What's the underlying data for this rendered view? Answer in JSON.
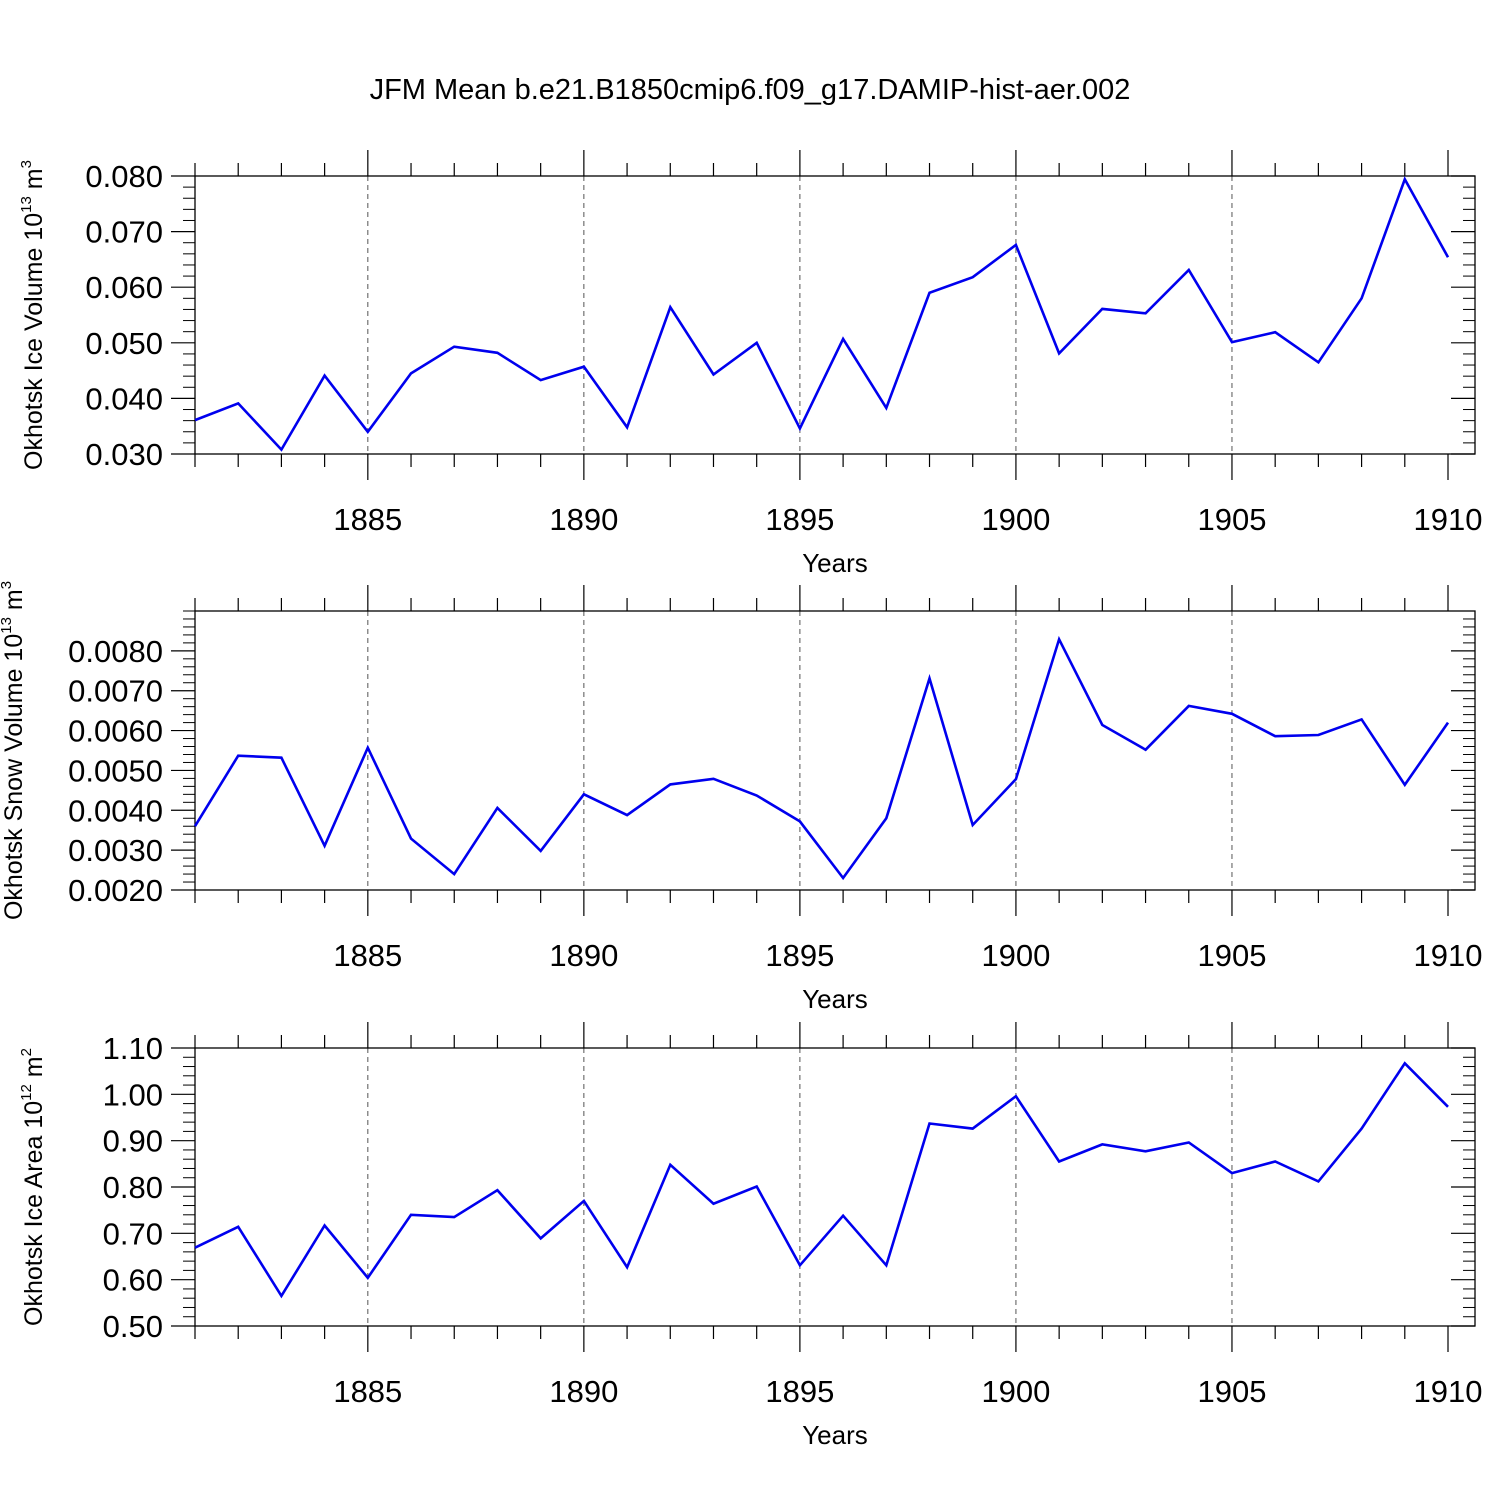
{
  "title": "JFM Mean b.e21.B1850cmip6.f09_g17.DAMIP-hist-aer.002",
  "colors": {
    "line": "#0000ee",
    "axis": "#000000",
    "grid": "#555555"
  },
  "chart_data": [
    {
      "type": "line",
      "ylabel": {
        "main": "Okhotsk Ice Volume 10",
        "exponent": "13",
        "unit": " m",
        "unit_exponent": "3"
      },
      "xlabel": "Years",
      "xlim": [
        1881,
        1910
      ],
      "ylim": [
        0.03,
        0.08
      ],
      "yticks": [
        0.03,
        0.04,
        0.05,
        0.06,
        0.07,
        0.08
      ],
      "ytick_labels": [
        "0.030",
        "0.040",
        "0.050",
        "0.060",
        "0.070",
        "0.080"
      ],
      "xticks": [
        1885,
        1890,
        1895,
        1900,
        1905,
        1910
      ],
      "xtick_labels": [
        "1885",
        "1890",
        "1895",
        "1900",
        "1905",
        "1910"
      ],
      "x": [
        1881,
        1882,
        1883,
        1884,
        1885,
        1886,
        1887,
        1888,
        1889,
        1890,
        1891,
        1892,
        1893,
        1894,
        1895,
        1896,
        1897,
        1898,
        1899,
        1900,
        1901,
        1902,
        1903,
        1904,
        1905,
        1906,
        1907,
        1908,
        1909,
        1910
      ],
      "series": [
        {
          "name": "Okhotsk Ice Volume",
          "values": [
            0.0361,
            0.0391,
            0.0308,
            0.0441,
            0.034,
            0.0445,
            0.0493,
            0.0482,
            0.0433,
            0.0457,
            0.0348,
            0.0564,
            0.0443,
            0.05,
            0.0346,
            0.0507,
            0.0383,
            0.059,
            0.0618,
            0.0676,
            0.0481,
            0.0561,
            0.0553,
            0.0631,
            0.0501,
            0.0519,
            0.0465,
            0.058,
            0.0794,
            0.0654
          ]
        }
      ]
    },
    {
      "type": "line",
      "ylabel": {
        "main": "Okhotsk Snow Volume 10",
        "exponent": "13",
        "unit": " m",
        "unit_exponent": "3"
      },
      "xlabel": "Years",
      "xlim": [
        1881,
        1910
      ],
      "ylim": [
        0.002,
        0.009
      ],
      "yticks": [
        0.002,
        0.003,
        0.004,
        0.005,
        0.006,
        0.007,
        0.008
      ],
      "ytick_labels": [
        "0.0020",
        "0.0030",
        "0.0040",
        "0.0050",
        "0.0060",
        "0.0070",
        "0.0080"
      ],
      "xticks": [
        1885,
        1890,
        1895,
        1900,
        1905,
        1910
      ],
      "xtick_labels": [
        "1885",
        "1890",
        "1895",
        "1900",
        "1905",
        "1910"
      ],
      "x": [
        1881,
        1882,
        1883,
        1884,
        1885,
        1886,
        1887,
        1888,
        1889,
        1890,
        1891,
        1892,
        1893,
        1894,
        1895,
        1896,
        1897,
        1898,
        1899,
        1900,
        1901,
        1902,
        1903,
        1904,
        1905,
        1906,
        1907,
        1908,
        1909,
        1910
      ],
      "series": [
        {
          "name": "Okhotsk Snow Volume",
          "values": [
            0.0036,
            0.00537,
            0.00532,
            0.00311,
            0.00557,
            0.00329,
            0.0024,
            0.00406,
            0.00298,
            0.0044,
            0.00388,
            0.00465,
            0.00479,
            0.00437,
            0.00372,
            0.0023,
            0.0038,
            0.00731,
            0.00363,
            0.00478,
            0.00829,
            0.00614,
            0.00552,
            0.00662,
            0.00642,
            0.00586,
            0.00589,
            0.00628,
            0.00464,
            0.0062
          ]
        }
      ]
    },
    {
      "type": "line",
      "ylabel": {
        "main": "Okhotsk Ice Area 10",
        "exponent": "12",
        "unit": " m",
        "unit_exponent": "2"
      },
      "xlabel": "Years",
      "xlim": [
        1881,
        1910
      ],
      "ylim": [
        0.5,
        1.1
      ],
      "yticks": [
        0.5,
        0.6,
        0.7,
        0.8,
        0.9,
        1.0,
        1.1
      ],
      "ytick_labels": [
        "0.50",
        "0.60",
        "0.70",
        "0.80",
        "0.90",
        "1.00",
        "1.10"
      ],
      "xticks": [
        1885,
        1890,
        1895,
        1900,
        1905,
        1910
      ],
      "xtick_labels": [
        "1885",
        "1890",
        "1895",
        "1900",
        "1905",
        "1910"
      ],
      "x": [
        1881,
        1882,
        1883,
        1884,
        1885,
        1886,
        1887,
        1888,
        1889,
        1890,
        1891,
        1892,
        1893,
        1894,
        1895,
        1896,
        1897,
        1898,
        1899,
        1900,
        1901,
        1902,
        1903,
        1904,
        1905,
        1906,
        1907,
        1908,
        1909,
        1910
      ],
      "series": [
        {
          "name": "Okhotsk Ice Area",
          "values": [
            0.669,
            0.714,
            0.565,
            0.717,
            0.604,
            0.74,
            0.735,
            0.793,
            0.689,
            0.77,
            0.627,
            0.848,
            0.764,
            0.801,
            0.631,
            0.738,
            0.631,
            0.937,
            0.926,
            0.996,
            0.855,
            0.892,
            0.877,
            0.896,
            0.83,
            0.855,
            0.812,
            0.926,
            1.067,
            0.973
          ]
        }
      ]
    }
  ]
}
